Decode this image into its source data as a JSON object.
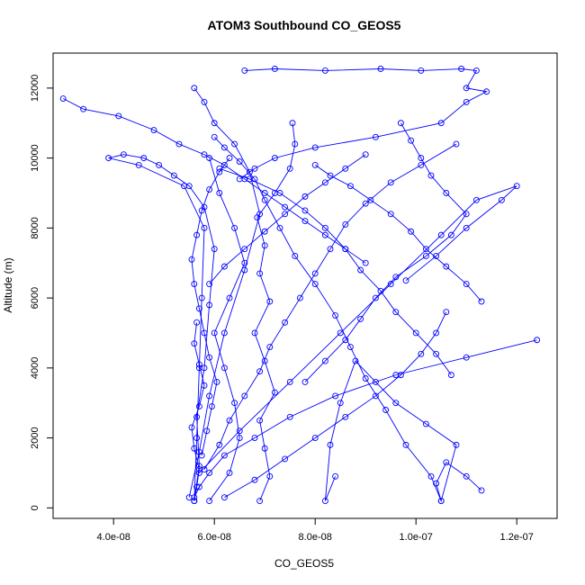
{
  "chart_data": {
    "type": "line",
    "title": "ATOM3 Southbound CO_GEOS5",
    "xlabel": "CO_GEOS5",
    "ylabel": "Altitude (m)",
    "xlim": [
      2.8e-08,
      1.28e-07
    ],
    "ylim": [
      -300,
      13000
    ],
    "x_ticks": [
      4e-08,
      6e-08,
      8e-08,
      1e-07,
      1.2e-07
    ],
    "x_tick_labels": [
      "4.0e-08",
      "6.0e-08",
      "8.0e-08",
      "1.0e-07",
      "1.2e-07"
    ],
    "y_ticks": [
      0,
      2000,
      4000,
      6000,
      8000,
      10000,
      12000
    ],
    "y_tick_labels": [
      "0",
      "2000",
      "4000",
      "6000",
      "8000",
      "10000",
      "12000"
    ],
    "series_color": "#0000ff",
    "marker": "open-circle",
    "grid": false,
    "series": [
      {
        "x": [
          5.6e-08,
          5.7e-08,
          5.65e-08,
          5.8e-08,
          5.9e-08,
          6e-08,
          5.8e-08,
          5.5e-08,
          5.2e-08,
          4.9e-08,
          4.6e-08,
          4.2e-08,
          3.9e-08,
          4.5e-08,
          5.4e-08,
          5.8e-08,
          5.75e-08,
          5.7e-08,
          5.65e-08,
          5.6e-08
        ],
        "y": [
          200,
          1200,
          2600,
          4000,
          5800,
          7400,
          8600,
          9200,
          9500,
          9800,
          10000,
          10100,
          10000,
          9800,
          9200,
          8000,
          6000,
          4000,
          2000,
          200
        ]
      },
      {
        "x": [
          5.5e-08,
          5.7e-08,
          5.9e-08,
          6.2e-08,
          6.6e-08,
          6.9e-08,
          6.7e-08,
          6.4e-08,
          6e-08,
          5.8e-08,
          5.6e-08
        ],
        "y": [
          300,
          1600,
          3200,
          5000,
          6800,
          8400,
          9600,
          10400,
          11000,
          11600,
          12000
        ]
      },
      {
        "x": [
          6.6e-08,
          7.2e-08,
          8.2e-08,
          9.3e-08,
          1.01e-07,
          1.09e-07,
          1.12e-07,
          1.1e-07,
          1.14e-07,
          1.1e-07,
          1.05e-07,
          9.2e-08,
          8e-08,
          7.2e-08,
          6.8e-08,
          6.5e-08
        ],
        "y": [
          12500,
          12550,
          12500,
          12550,
          12500,
          12550,
          12500,
          12000,
          11900,
          11600,
          11000,
          10600,
          10300,
          10000,
          9700,
          9400
        ]
      },
      {
        "x": [
          3e-08,
          3.4e-08,
          4.1e-08,
          4.8e-08,
          5.3e-08,
          5.8e-08,
          6.2e-08,
          6.6e-08,
          7e-08,
          7.4e-08,
          7.8e-08,
          8.2e-08,
          8.6e-08,
          9e-08
        ],
        "y": [
          11700,
          11400,
          11200,
          10800,
          10400,
          10100,
          9800,
          9400,
          9000,
          8600,
          8200,
          7800,
          7400,
          7000
        ]
      },
      {
        "x": [
          6.9e-08,
          7.1e-08,
          7e-08,
          6.9e-08,
          7.2e-08,
          7e-08,
          6.8e-08,
          7.1e-08,
          6.9e-08,
          7e-08,
          6.85e-08,
          7.2e-08,
          7.5e-08,
          7.6e-08,
          7.55e-08
        ],
        "y": [
          200,
          900,
          1700,
          2500,
          3300,
          4200,
          5000,
          5900,
          6700,
          7500,
          8300,
          9000,
          9700,
          10400,
          11000
        ]
      },
      {
        "x": [
          1.05e-07,
          1.03e-07,
          9.8e-08,
          9.4e-08,
          9e-08,
          8.7e-08,
          8.4e-08,
          8e-08,
          7.6e-08,
          7.3e-08,
          7e-08,
          6.8e-08,
          6.5e-08,
          6.2e-08,
          6e-08
        ],
        "y": [
          200,
          900,
          1800,
          2800,
          3700,
          4600,
          5500,
          6400,
          7200,
          8000,
          8800,
          9400,
          9900,
          10300,
          10600
        ]
      },
      {
        "x": [
          1.24e-07,
          1.1e-07,
          9.6e-08,
          8.4e-08,
          7.5e-08,
          6.8e-08,
          6.2e-08,
          5.9e-08,
          5.7e-08,
          5.6e-08
        ],
        "y": [
          4800,
          4300,
          3800,
          3200,
          2600,
          2000,
          1500,
          1000,
          600,
          300
        ]
      },
      {
        "x": [
          5.7e-08,
          6.5e-08,
          7.5e-08,
          8.5e-08,
          9.5e-08,
          1.05e-07,
          1.12e-07,
          1.2e-07,
          1.17e-07,
          1.1e-07,
          1.04e-07,
          9.8e-08
        ],
        "y": [
          1000,
          2200,
          3600,
          5000,
          6400,
          7800,
          8800,
          9200,
          8800,
          8000,
          7200,
          6500
        ]
      },
      {
        "x": [
          1.13e-07,
          1.1e-07,
          1.06e-07,
          1.04e-07,
          1.05e-07,
          1.08e-07,
          1.02e-07,
          9.6e-08,
          9.2e-08,
          8.8e-08,
          8.5e-08,
          8.3e-08,
          8.2e-08,
          8.4e-08
        ],
        "y": [
          500,
          900,
          1300,
          700,
          200,
          1800,
          2400,
          3000,
          3600,
          4200,
          3000,
          1800,
          200,
          900
        ]
      },
      {
        "x": [
          1.08e-07,
          1.01e-07,
          9.5e-08,
          9e-08,
          8.6e-08,
          8.3e-08,
          8e-08,
          7.7e-08,
          7.4e-08,
          7.1e-08,
          6.9e-08,
          6.6e-08,
          6.3e-08,
          6.1e-08,
          5.8e-08
        ],
        "y": [
          10400,
          9800,
          9300,
          8700,
          8100,
          7400,
          6700,
          6000,
          5300,
          4600,
          3900,
          3200,
          2500,
          1800,
          1100
        ]
      },
      {
        "x": [
          9.7e-08,
          9.9e-08,
          1.01e-07,
          1.03e-07,
          1.06e-07,
          1.1e-07,
          1.07e-07,
          1.02e-07,
          9.6e-08,
          9.2e-08,
          8.9e-08,
          8.6e-08,
          8.2e-08,
          7.8e-08
        ],
        "y": [
          11000,
          10500,
          10000,
          9500,
          9000,
          8400,
          7800,
          7200,
          6600,
          6000,
          5400,
          4800,
          4200,
          3600
        ]
      },
      {
        "x": [
          5.9e-08,
          6.3e-08,
          6.5e-08,
          6.4e-08,
          6.2e-08,
          6e-08,
          6.3e-08,
          6.6e-08,
          6.4e-08,
          6.1e-08,
          5.9e-08
        ],
        "y": [
          200,
          1000,
          2000,
          3000,
          4000,
          5000,
          6000,
          7000,
          8000,
          9000,
          10000
        ]
      },
      {
        "x": [
          6.1e-08,
          6.7e-08,
          7.3e-08,
          7.8e-08,
          8.2e-08,
          8.6e-08,
          8.9e-08,
          9.3e-08,
          9.6e-08,
          1e-07,
          1.04e-07,
          1.07e-07
        ],
        "y": [
          9700,
          9400,
          9000,
          8500,
          8000,
          7400,
          6800,
          6200,
          5600,
          5000,
          4400,
          3800
        ]
      },
      {
        "x": [
          5.75e-08,
          5.85e-08,
          5.95e-08,
          6.05e-08,
          5.9e-08,
          5.8e-08,
          5.7e-08,
          5.6e-08,
          5.55e-08,
          5.65e-08,
          5.75e-08,
          5.9e-08,
          6.1e-08,
          6.3e-08
        ],
        "y": [
          1500,
          2200,
          2900,
          3600,
          4300,
          5000,
          5700,
          6400,
          7100,
          7800,
          8500,
          9100,
          9600,
          10000
        ]
      },
      {
        "x": [
          8e-08,
          8.3e-08,
          8.7e-08,
          9.1e-08,
          9.5e-08,
          9.9e-08,
          1.02e-07,
          1.06e-07,
          1.1e-07,
          1.13e-07
        ],
        "y": [
          9800,
          9500,
          9200,
          8800,
          8400,
          7900,
          7400,
          6900,
          6400,
          5900
        ]
      },
      {
        "x": [
          6.2e-08,
          6.8e-08,
          7.4e-08,
          8e-08,
          8.6e-08,
          9.2e-08,
          9.7e-08,
          1.01e-07,
          1.04e-07,
          1.06e-07
        ],
        "y": [
          300,
          800,
          1400,
          2000,
          2600,
          3200,
          3800,
          4400,
          5000,
          5600
        ]
      },
      {
        "x": [
          5.6e-08,
          5.65e-08,
          5.7e-08,
          5.6e-08,
          5.55e-08,
          5.7e-08,
          5.8e-08,
          5.7e-08,
          5.6e-08,
          5.65e-08
        ],
        "y": [
          200,
          600,
          1100,
          1700,
          2300,
          2900,
          3500,
          4100,
          4700,
          5300
        ]
      },
      {
        "x": [
          9e-08,
          8.6e-08,
          8.2e-08,
          7.8e-08,
          7.4e-08,
          7e-08,
          6.6e-08,
          6.2e-08,
          5.9e-08
        ],
        "y": [
          10100,
          9700,
          9300,
          8900,
          8400,
          7900,
          7400,
          6900,
          6400
        ]
      }
    ]
  }
}
